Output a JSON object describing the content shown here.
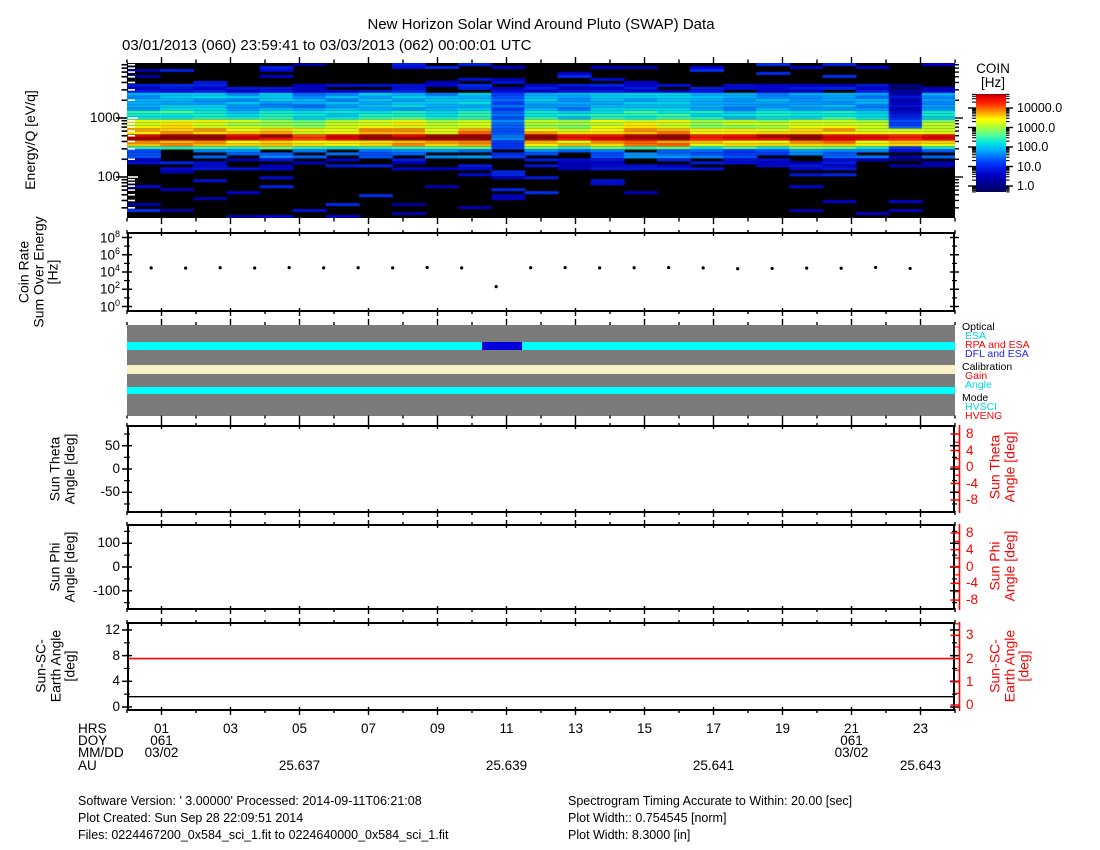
{
  "title": "New Horizon Solar Wind Around Pluto (SWAP) Data",
  "subtitle": "03/01/2013 (060) 23:59:41 to 03/03/2013 (062) 00:00:01 UTC",
  "colorbar": {
    "title_line1": "COIN",
    "title_line2": "[Hz]",
    "tick_labels": [
      "10000.0",
      "1000.0",
      "100.0",
      "10.0",
      "1.0"
    ]
  },
  "spectrogram_panel": {
    "ylabel": "Energy/Q [eV/q]",
    "ytick_labels": [
      "1000",
      "100"
    ]
  },
  "coinrate_panel": {
    "ylabel_lines": [
      "Coin Rate",
      "Sum Over Energy",
      "[Hz]"
    ],
    "ytick_exponents": [
      "8",
      "6",
      "4",
      "2",
      "0"
    ]
  },
  "status_panel": {
    "legend_groups": [
      {
        "label": "Optical",
        "color": "#000000",
        "items": [
          {
            "label": "ESA",
            "color": "#00dbdb"
          },
          {
            "label": "RPA and ESA",
            "color": "#ff0000"
          },
          {
            "label": "DFL and ESA",
            "color": "#2222ff"
          }
        ]
      },
      {
        "label": "Calibration",
        "color": "#000000",
        "items": [
          {
            "label": "Gain",
            "color": "#ff0000"
          },
          {
            "label": "Angle",
            "color": "#00dbdb"
          }
        ]
      },
      {
        "label": "Mode",
        "color": "#000000",
        "items": [
          {
            "label": "HVSCI",
            "color": "#00dbdb"
          },
          {
            "label": "HVENG",
            "color": "#ff0000"
          }
        ]
      }
    ],
    "bar_rows": [
      {
        "name": "spacer-1",
        "color": "#7b7b7b"
      },
      {
        "name": "optical-esa-band",
        "color": "#00ffff"
      },
      {
        "name": "spacer-2",
        "color": "#7b7b7b"
      },
      {
        "name": "calibration-band",
        "color": "#f7f3c4"
      },
      {
        "name": "spacer-3",
        "color": "#7b7b7b"
      },
      {
        "name": "mode-hvsci-band",
        "color": "#00ffff"
      },
      {
        "name": "spacer-4",
        "color": "#7b7b7b"
      }
    ]
  },
  "theta_panel": {
    "ylabel_lines": [
      "Sun Theta",
      "Angle [deg]"
    ],
    "ytick_labels": [
      "50",
      "0",
      "-50"
    ],
    "right_label_lines": [
      "Sun Theta",
      "Angle [deg]"
    ],
    "right_tick_labels": [
      "8",
      "4",
      "0",
      "-4",
      "-8"
    ]
  },
  "phi_panel": {
    "ylabel_lines": [
      "Sun Phi",
      "Angle [deg]"
    ],
    "ytick_labels": [
      "100",
      "0",
      "-100"
    ],
    "right_label_lines": [
      "Sun Phi",
      "Angle [deg]"
    ],
    "right_tick_labels": [
      "8",
      "4",
      "0",
      "-4",
      "-8"
    ]
  },
  "earth_panel": {
    "ylabel_lines": [
      "Sun-SC-",
      "Earth Angle",
      "[deg]"
    ],
    "ytick_labels": [
      "12",
      "8",
      "4",
      "0"
    ],
    "right_label_lines": [
      "Sun-SC-",
      "Earth Angle",
      "[deg]"
    ],
    "right_tick_labels": [
      "3",
      "2",
      "1",
      "0"
    ]
  },
  "xaxis": {
    "row_labels": [
      "HRS",
      "DOY",
      "MM/DD",
      "AU"
    ],
    "hrs": [
      {
        "hour": 1,
        "label": "01"
      },
      {
        "hour": 3,
        "label": "03"
      },
      {
        "hour": 5,
        "label": "05"
      },
      {
        "hour": 7,
        "label": "07"
      },
      {
        "hour": 9,
        "label": "09"
      },
      {
        "hour": 11,
        "label": "11"
      },
      {
        "hour": 13,
        "label": "13"
      },
      {
        "hour": 15,
        "label": "15"
      },
      {
        "hour": 17,
        "label": "17"
      },
      {
        "hour": 19,
        "label": "19"
      },
      {
        "hour": 21,
        "label": "21"
      },
      {
        "hour": 23,
        "label": "23"
      }
    ],
    "doy": [
      {
        "hour": 1,
        "label": "061"
      },
      {
        "hour": 21,
        "label": "061"
      }
    ],
    "mmdd": [
      {
        "hour": 1,
        "label": "03/02"
      },
      {
        "hour": 21,
        "label": "03/02"
      }
    ],
    "au": [
      {
        "hour": 5,
        "label": "25.637"
      },
      {
        "hour": 11,
        "label": "25.639"
      },
      {
        "hour": 17,
        "label": "25.641"
      },
      {
        "hour": 23,
        "label": "25.643"
      }
    ]
  },
  "footer": {
    "left": [
      "Software Version:  ' 3.00000'  Processed: 2014-09-11T06:21:08",
      "Plot Created: Sun Sep 28 22:09:51 2014",
      "Files: 0224467200_0x584_sci_1.fit to 0224640000_0x584_sci_1.fit"
    ],
    "right": [
      "Spectrogram Timing Accurate to Within: 20.00 [sec]",
      "Plot Width:: 0.754545 [norm]",
      "Plot Width: 8.3000 [in]"
    ]
  },
  "chart_data": [
    {
      "type": "heatmap",
      "name": "energy-per-charge-spectrogram",
      "title": "Energy/Q [eV/q] vs time, color = COIN [Hz]",
      "x_axis": "hours of 2013-03-02 (DOY 061)",
      "x_range": [
        0,
        24
      ],
      "y_axis": "Energy/Q [eV/q]",
      "y_scale": "log",
      "y_range": [
        20,
        8500
      ],
      "z_axis": "COIN [Hz]",
      "z_scale": "log",
      "z_range": [
        1,
        10000
      ],
      "description": "Persistent solar-wind proton beam: bright red band near 550-700 eV/q all day, cyan/yellow halo 700-3000 eV/q above it, blue patches below, sparse blue speckle in black regions; blue calibration column near 10.6-11.5 h; dimmed column near 22.1-23.0 h",
      "seed": 7,
      "n_cols": 25,
      "bands": [
        {
          "f0": 0.0,
          "f1": 0.13,
          "level": 0,
          "speckle": 0.2
        },
        {
          "f0": 0.13,
          "f1": 0.2,
          "level": 0.2,
          "patchy": 0.35
        },
        {
          "f0": 0.2,
          "f1": 0.3,
          "level": 0.42
        },
        {
          "f0": 0.3,
          "f1": 0.37,
          "level": 0.5
        },
        {
          "f0": 0.37,
          "f1": 0.42,
          "level": 0.68
        },
        {
          "f0": 0.42,
          "f1": 0.455,
          "level": 0.76
        },
        {
          "f0": 0.455,
          "f1": 0.5,
          "level": 0.97
        },
        {
          "f0": 0.5,
          "f1": 0.53,
          "level": 0.78
        },
        {
          "f0": 0.53,
          "f1": 0.565,
          "level": 0.55
        },
        {
          "f0": 0.565,
          "f1": 0.61,
          "level": 0.35,
          "patchy": 0.25
        },
        {
          "f0": 0.61,
          "f1": 0.69,
          "level": 0.2,
          "patchy": 0.5
        },
        {
          "f0": 0.69,
          "f1": 1.0,
          "level": 0,
          "speckle": 0.09
        }
      ],
      "calibration_gap_hours": [
        10.3,
        11.45
      ],
      "dim_column_hours": [
        22.2,
        23.2
      ]
    },
    {
      "type": "scatter",
      "name": "coin-rate-sum-over-energy",
      "y_axis": "Coin Rate Sum Over Energy [Hz]",
      "y_scale": "log",
      "y_range": [
        1,
        100000000
      ],
      "x_hours": [
        0.7,
        1.7,
        2.7,
        3.7,
        4.7,
        5.7,
        6.7,
        7.7,
        8.7,
        9.7,
        10.7,
        11.7,
        12.7,
        13.7,
        14.7,
        15.7,
        16.7,
        17.7,
        18.7,
        19.7,
        20.7,
        21.7,
        22.7
      ],
      "values_hz": [
        30000,
        28000,
        31000,
        29000,
        32000,
        30000,
        31000,
        30000,
        33000,
        30000,
        200,
        31000,
        32000,
        30000,
        31000,
        32000,
        30000,
        24000,
        26000,
        28000,
        27000,
        34000,
        26000
      ],
      "note": "single low outlier of ~200 Hz near hour 10.7"
    },
    {
      "type": "timeline",
      "name": "instrument-status-bars",
      "rows": [
        {
          "label": "Optical: ESA",
          "color": "cyan",
          "segments_hours": [
            [
              0,
              24
            ]
          ],
          "overlay": {
            "label": "DFL and ESA",
            "color": "blue",
            "segment_hours": [
              10.3,
              11.45
            ]
          }
        },
        {
          "label": "Calibration",
          "color": "cream",
          "segments_hours": [
            [
              0,
              24
            ]
          ]
        },
        {
          "label": "Mode: HVSCI",
          "color": "cyan",
          "segments_hours": [
            [
              0,
              24
            ]
          ]
        }
      ]
    },
    {
      "type": "line",
      "name": "sun-theta-angle",
      "y_axis": "Sun Theta Angle [deg]",
      "y_range": [
        -90,
        90
      ],
      "series": []
    },
    {
      "type": "line",
      "name": "sun-phi-angle",
      "y_axis": "Sun Phi Angle [deg]",
      "y_range": [
        -180,
        180
      ],
      "series": []
    },
    {
      "type": "line",
      "name": "sun-sc-earth-angle",
      "y_axis": "Sun-SC-Earth Angle [deg]",
      "series": [
        {
          "name": "left-axis-black",
          "color": "#000000",
          "constant_value_deg": 1.6,
          "axis": "left [0-12]"
        },
        {
          "name": "right-axis-red",
          "color": "#ff0000",
          "constant_value_deg": 2.0,
          "axis": "right [0-3]"
        }
      ]
    }
  ]
}
